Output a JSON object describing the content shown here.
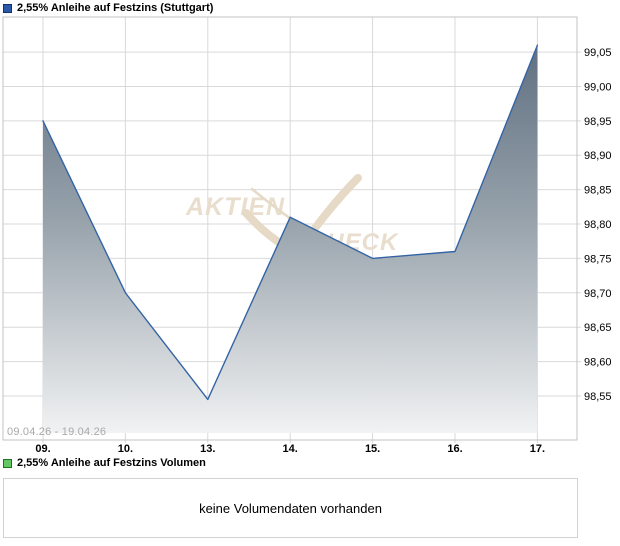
{
  "price_chart": {
    "legend_label": "2,55% Anleihe auf Festzins (Stuttgart)",
    "legend_color": "#2b58a8",
    "date_range": "09.04.26 - 19.04.26",
    "watermark": {
      "word1": "AKTIEN",
      "word2": "CHECK"
    }
  },
  "volume_chart": {
    "legend_label": "2,55% Anleihe auf Festzins Volumen",
    "legend_color": "#63c763",
    "message": "keine Volumendaten vorhanden"
  },
  "chart_data": {
    "type": "area",
    "title": "2,55% Anleihe auf Festzins (Stuttgart)",
    "x_labels": [
      "09.",
      "10.",
      "13.",
      "14.",
      "15.",
      "16.",
      "17."
    ],
    "values": [
      98.95,
      98.7,
      98.545,
      98.81,
      98.75,
      98.76,
      99.06
    ],
    "y_ticks": [
      99.05,
      99.0,
      98.95,
      98.9,
      98.85,
      98.8,
      98.75,
      98.7,
      98.65,
      98.6,
      98.55
    ],
    "y_tick_labels": [
      "99,05",
      "99,00",
      "98,95",
      "98,90",
      "98,85",
      "98,80",
      "98,75",
      "98,70",
      "98,65",
      "98,60",
      "98,55"
    ],
    "ylim": [
      98.486,
      99.101
    ],
    "grid": true,
    "legend_position": "none",
    "line_color": "#3464a5",
    "grid_color": "#d9d9d9",
    "area_top_color": "#60708 2",
    "area_mid_color": "#97a2ab",
    "area_bottom_color": "#f1f2f3"
  }
}
